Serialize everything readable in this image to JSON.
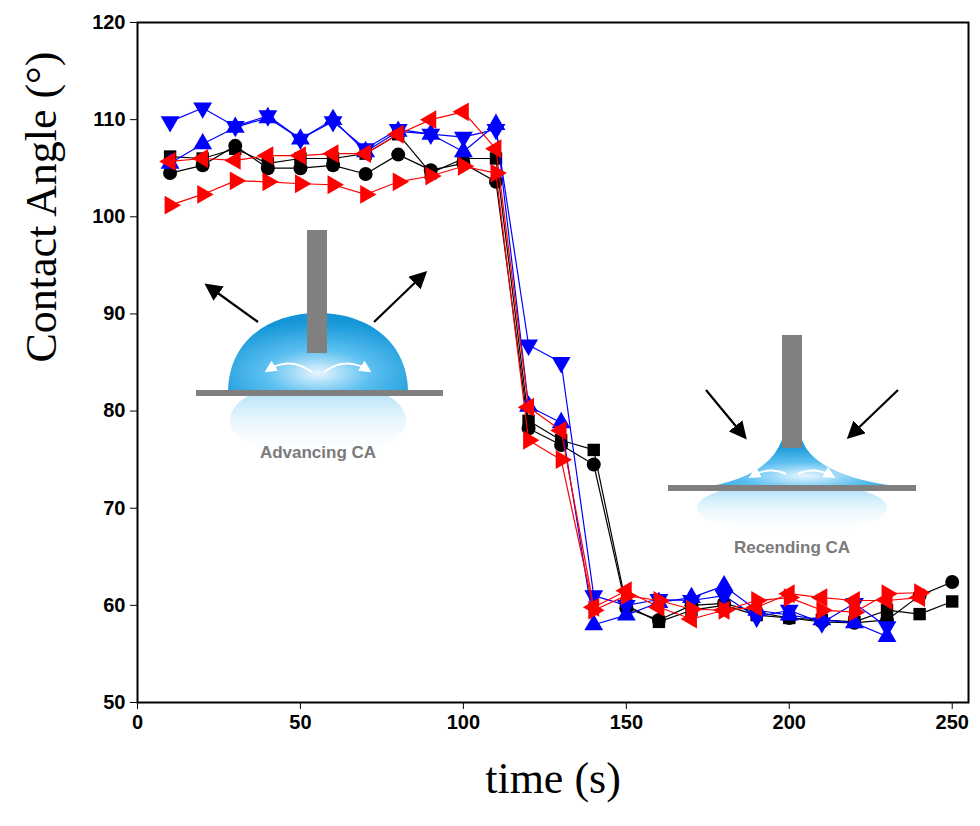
{
  "chart_data": {
    "type": "line",
    "xlabel": "time (s)",
    "ylabel": "Contact Angle (°)",
    "x": [
      10,
      20,
      30,
      40,
      50,
      60,
      70,
      80,
      90,
      100,
      110,
      120,
      130,
      140,
      150,
      160,
      170,
      180,
      190,
      200,
      210,
      220,
      230,
      240,
      250
    ],
    "series": [
      {
        "color": "#000000",
        "marker": "square",
        "values": [
          106.2,
          106,
          107,
          105.5,
          106,
          106,
          106.5,
          108.5,
          104.5,
          106,
          106,
          79,
          77,
          76,
          60,
          58.3,
          59.5,
          60,
          59,
          58.7,
          58.5,
          58.3,
          59.5,
          59.1,
          60.4
        ]
      },
      {
        "color": "#000000",
        "marker": "circle",
        "values": [
          104.5,
          105.3,
          107.3,
          105,
          105,
          105.3,
          104.4,
          106.4,
          104.8,
          105.5,
          103.6,
          78.2,
          76.5,
          74.5,
          59.7,
          58.5,
          60,
          60.2,
          59.3,
          58.7,
          58.3,
          58.2,
          58.5,
          61,
          62.4
        ]
      },
      {
        "color": "#0000ff",
        "marker": "triangle-up",
        "values": [
          105.5,
          107.5,
          109.2,
          110.2,
          108,
          110,
          106.7,
          108.8,
          108.5,
          106.7,
          109.5,
          80.5,
          78.8,
          58,
          59,
          60.3,
          60.8,
          62,
          59.5,
          59,
          58.5,
          58.2,
          56.8,
          null,
          null
        ]
      },
      {
        "color": "#0000ff",
        "marker": "triangle-down",
        "values": [
          109.8,
          111.2,
          109.3,
          110.4,
          108,
          109.8,
          107,
          109,
          108.5,
          108.2,
          109,
          86.8,
          85,
          61,
          60,
          60.6,
          60.5,
          61,
          58.8,
          59.5,
          58.2,
          60.2,
          57.8,
          null,
          null
        ]
      },
      {
        "color": "#ff0000",
        "marker": "triangle-left",
        "values": [
          105.7,
          106,
          105.8,
          106.3,
          106.3,
          106.5,
          106.5,
          108.5,
          110,
          110.8,
          107,
          80.4,
          78,
          59.8,
          61.5,
          59.8,
          58.6,
          59.5,
          59.8,
          61.2,
          60.8,
          60.5,
          60.5,
          60.8,
          null
        ]
      },
      {
        "color": "#ff0000",
        "marker": "triangle-right",
        "values": [
          101.2,
          102.3,
          103.7,
          103.6,
          103.4,
          103.3,
          102.3,
          103.6,
          104.2,
          105.2,
          104.5,
          77,
          75,
          59.5,
          61,
          60.5,
          59.6,
          59.5,
          60.5,
          60.8,
          59.5,
          59.3,
          61.2,
          61.3,
          null
        ]
      }
    ],
    "xlim": [
      0,
      255
    ],
    "ylim": [
      50,
      120
    ],
    "xticks": [
      0,
      50,
      100,
      150,
      200,
      250
    ],
    "yticks": [
      50,
      60,
      70,
      80,
      90,
      100,
      110,
      120
    ],
    "grid": false,
    "annotations": [
      {
        "text": "Advancing CA"
      },
      {
        "text": "Recending CA"
      }
    ]
  }
}
